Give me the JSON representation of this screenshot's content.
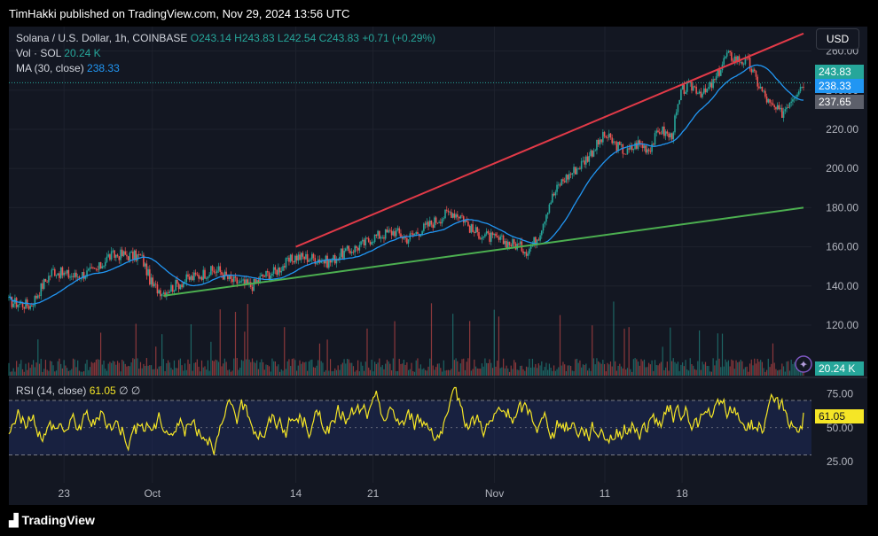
{
  "header": {
    "publisher_text": "TimHakki published on TradingView.com, Nov 29, 2024 13:56 UTC"
  },
  "legend": {
    "symbol": "Solana / U.S. Dollar, 1h, COINBASE",
    "o_label": "O",
    "o_value": "243.14",
    "h_label": "H",
    "h_value": "243.83",
    "l_label": "L",
    "l_value": "242.54",
    "c_label": "C",
    "c_value": "243.83",
    "change": "+0.71 (+0.29%)",
    "vol_label": "Vol · SOL",
    "vol_value": "20.24 K",
    "ma_label": "MA (30, close)",
    "ma_value": "238.33",
    "rsi_label": "RSI (14, close)",
    "rsi_value": "61.05",
    "rsi_extra1": "∅",
    "rsi_extra2": "∅"
  },
  "currency_button": "USD",
  "price_labels": {
    "last": "243.83",
    "ma": "238.33",
    "other": "237.65",
    "volume": "20.24 K",
    "rsi": "61.05"
  },
  "colors": {
    "up": "#26a69a",
    "down": "#ef5350",
    "ma": "#2196f3",
    "upper_trend": "#e23a48",
    "lower_trend": "#4caf50",
    "rsi": "#f5e626",
    "rsi_band": "#1e2a5a"
  },
  "footer": {
    "brand": "TradingView"
  },
  "chart_data": [
    {
      "type": "candlestick",
      "title": "Solana / U.S. Dollar, 1h, COINBASE",
      "y_axis_ticks": [
        120,
        140,
        160,
        180,
        200,
        220,
        240,
        260
      ],
      "ylim": [
        96,
        268
      ],
      "x_tick_labels": [
        "23",
        "Oct",
        "14",
        "21",
        "Nov",
        "11",
        "18"
      ],
      "x_ticks_at": [
        "2024-09-23",
        "2024-10-01",
        "2024-10-14",
        "2024-10-21",
        "2024-11-01",
        "2024-11-11",
        "2024-11-18"
      ],
      "x_range": [
        "2024-09-18",
        "2024-11-29"
      ],
      "close_path": [
        {
          "x": "2024-09-18",
          "y": 132
        },
        {
          "x": "2024-09-20",
          "y": 130
        },
        {
          "x": "2024-09-21",
          "y": 140
        },
        {
          "x": "2024-09-22",
          "y": 148
        },
        {
          "x": "2024-09-23",
          "y": 146
        },
        {
          "x": "2024-09-24",
          "y": 145
        },
        {
          "x": "2024-09-26",
          "y": 148
        },
        {
          "x": "2024-09-27",
          "y": 155
        },
        {
          "x": "2024-09-28",
          "y": 156
        },
        {
          "x": "2024-09-30",
          "y": 155
        },
        {
          "x": "2024-10-01",
          "y": 140
        },
        {
          "x": "2024-10-02",
          "y": 137
        },
        {
          "x": "2024-10-04",
          "y": 143
        },
        {
          "x": "2024-10-06",
          "y": 147
        },
        {
          "x": "2024-10-07",
          "y": 148
        },
        {
          "x": "2024-10-08",
          "y": 143
        },
        {
          "x": "2024-10-10",
          "y": 140
        },
        {
          "x": "2024-10-11",
          "y": 145
        },
        {
          "x": "2024-10-12",
          "y": 147
        },
        {
          "x": "2024-10-14",
          "y": 155
        },
        {
          "x": "2024-10-16",
          "y": 154
        },
        {
          "x": "2024-10-17",
          "y": 152
        },
        {
          "x": "2024-10-18",
          "y": 156
        },
        {
          "x": "2024-10-20",
          "y": 161
        },
        {
          "x": "2024-10-21",
          "y": 165
        },
        {
          "x": "2024-10-23",
          "y": 168
        },
        {
          "x": "2024-10-24",
          "y": 164
        },
        {
          "x": "2024-10-26",
          "y": 171
        },
        {
          "x": "2024-10-28",
          "y": 178
        },
        {
          "x": "2024-10-29",
          "y": 176
        },
        {
          "x": "2024-10-30",
          "y": 168
        },
        {
          "x": "2024-11-01",
          "y": 164
        },
        {
          "x": "2024-11-03",
          "y": 161
        },
        {
          "x": "2024-11-04",
          "y": 158
        },
        {
          "x": "2024-11-05",
          "y": 166
        },
        {
          "x": "2024-11-06",
          "y": 183
        },
        {
          "x": "2024-11-07",
          "y": 193
        },
        {
          "x": "2024-11-08",
          "y": 198
        },
        {
          "x": "2024-11-09",
          "y": 203
        },
        {
          "x": "2024-11-10",
          "y": 210
        },
        {
          "x": "2024-11-11",
          "y": 217
        },
        {
          "x": "2024-11-12",
          "y": 212
        },
        {
          "x": "2024-11-13",
          "y": 208
        },
        {
          "x": "2024-11-14",
          "y": 213
        },
        {
          "x": "2024-11-15",
          "y": 210
        },
        {
          "x": "2024-11-16",
          "y": 220
        },
        {
          "x": "2024-11-17",
          "y": 216
        },
        {
          "x": "2024-11-18",
          "y": 240
        },
        {
          "x": "2024-11-19",
          "y": 242
        },
        {
          "x": "2024-11-20",
          "y": 238
        },
        {
          "x": "2024-11-21",
          "y": 245
        },
        {
          "x": "2024-11-22",
          "y": 258
        },
        {
          "x": "2024-11-23",
          "y": 256
        },
        {
          "x": "2024-11-24",
          "y": 254
        },
        {
          "x": "2024-11-25",
          "y": 242
        },
        {
          "x": "2024-11-26",
          "y": 232
        },
        {
          "x": "2024-11-27",
          "y": 228
        },
        {
          "x": "2024-11-28",
          "y": 237
        },
        {
          "x": "2024-11-29",
          "y": 244
        }
      ],
      "trendlines": [
        {
          "name": "upper",
          "from": {
            "x": "2024-10-14",
            "y": 160
          },
          "to": {
            "x": "2024-11-29",
            "y": 269
          }
        },
        {
          "name": "lower",
          "from": {
            "x": "2024-10-02",
            "y": 135
          },
          "to": {
            "x": "2024-11-29",
            "y": 180
          }
        }
      ],
      "overlay": {
        "name": "MA (30, close)",
        "last": 238.33
      },
      "last_price": 243.83
    },
    {
      "type": "bar",
      "title": "Vol · SOL",
      "last": "20.24 K",
      "x_range": [
        "2024-09-18",
        "2024-11-29"
      ]
    },
    {
      "type": "line",
      "title": "RSI (14, close)",
      "y_axis_ticks": [
        25,
        50,
        75
      ],
      "ylim": [
        18,
        83
      ],
      "band": [
        30,
        70
      ],
      "x_range": [
        "2024-09-18",
        "2024-11-29"
      ],
      "last": 61.05
    }
  ]
}
